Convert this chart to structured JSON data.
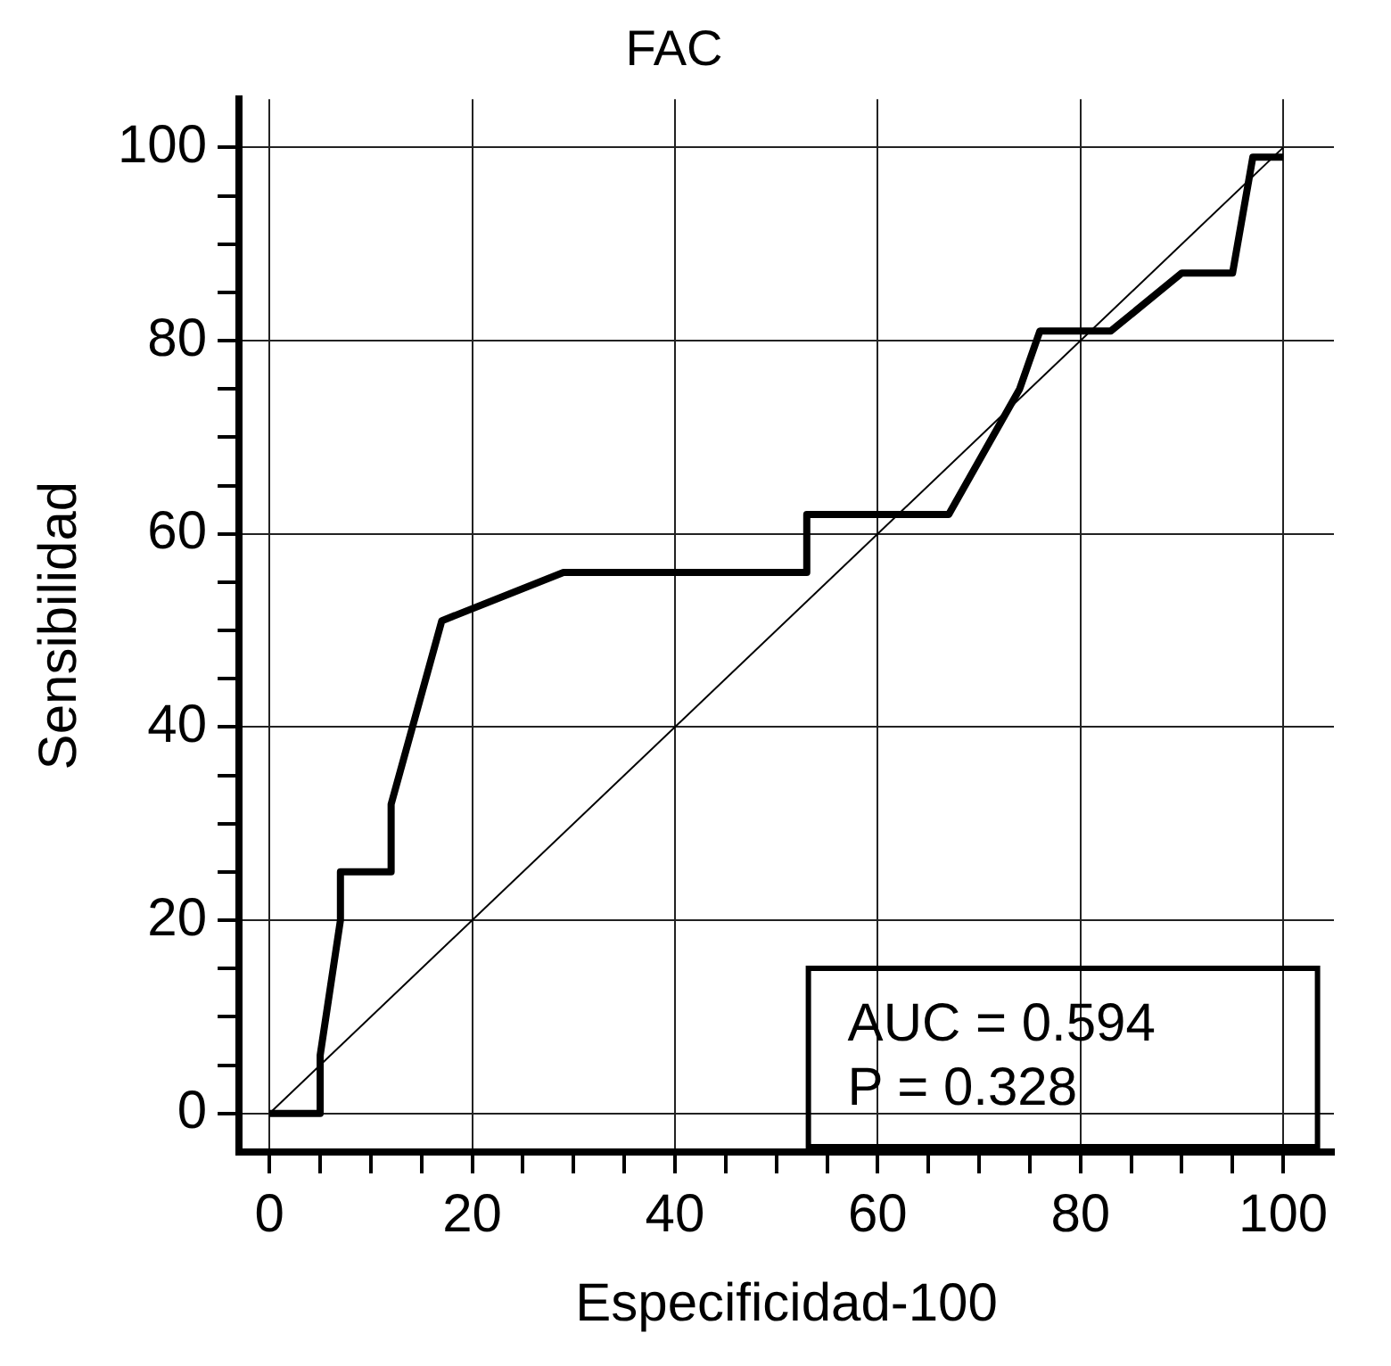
{
  "chart_data": {
    "type": "line",
    "title": "FAC",
    "xlabel": "Especificidad-100",
    "ylabel": "Sensibilidad",
    "series": [
      {
        "color": "#000000",
        "x": [
          0,
          5,
          5,
          7,
          7,
          12,
          12,
          17,
          29,
          53,
          53,
          67,
          74,
          76,
          83,
          90,
          95,
          97,
          100
        ],
        "values": [
          0,
          0,
          6,
          20,
          25,
          25,
          32,
          51,
          56,
          56,
          62,
          62,
          75,
          81,
          81,
          87,
          87,
          99,
          99
        ]
      },
      {
        "color": "#000000",
        "x": [
          0,
          100
        ],
        "values": [
          0,
          100
        ]
      }
    ],
    "annotations": [
      "AUC = 0.594",
      "P = 0.328"
    ],
    "xlim": [
      -3,
      105
    ],
    "ylim": [
      -4,
      105
    ],
    "xticks": [
      0,
      {
        "value": 5,
        "label": null
      },
      {
        "value": 10,
        "label": null
      },
      {
        "value": 15,
        "label": null
      },
      20,
      {
        "value": 25,
        "label": null
      },
      {
        "value": 30,
        "label": null
      },
      {
        "value": 35,
        "label": null
      },
      40,
      {
        "value": 45,
        "label": null
      },
      {
        "value": 50,
        "label": null
      },
      {
        "value": 55,
        "label": null
      },
      60,
      {
        "value": 65,
        "label": null
      },
      {
        "value": 70,
        "label": null
      },
      {
        "value": 75,
        "label": null
      },
      80,
      {
        "value": 85,
        "label": null
      },
      {
        "value": 90,
        "label": null
      },
      {
        "value": 95,
        "label": null
      },
      100
    ],
    "yticks": [
      0,
      {
        "value": 5,
        "label": null
      },
      {
        "value": 10,
        "label": null
      },
      {
        "value": 15,
        "label": null
      },
      20,
      {
        "value": 25,
        "label": null
      },
      {
        "value": 30,
        "label": null
      },
      {
        "value": 35,
        "label": null
      },
      40,
      {
        "value": 45,
        "label": null
      },
      {
        "value": 50,
        "label": null
      },
      {
        "value": 55,
        "label": null
      },
      60,
      {
        "value": 65,
        "label": null
      },
      {
        "value": 70,
        "label": null
      },
      {
        "value": 75,
        "label": null
      },
      80,
      {
        "value": 85,
        "label": null
      },
      {
        "value": 90,
        "label": null
      },
      {
        "value": 95,
        "label": null
      },
      100
    ],
    "grid": true,
    "legend": false,
    "marker": "none",
    "line_style": "solid"
  }
}
